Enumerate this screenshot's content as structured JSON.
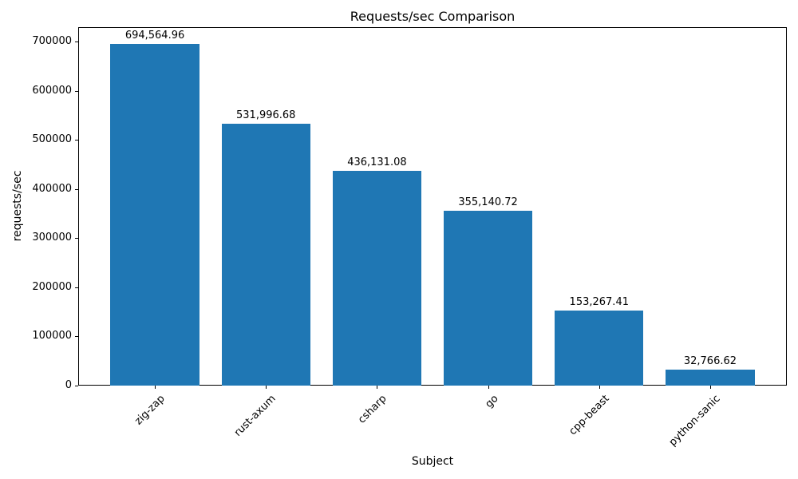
{
  "chart_data": {
    "type": "bar",
    "title": "Requests/sec Comparison",
    "xlabel": "Subject",
    "ylabel": "requests/sec",
    "categories": [
      "zig-zap",
      "rust-axum",
      "csharp",
      "go",
      "cpp-beast",
      "python-sanic"
    ],
    "values": [
      694564.96,
      531996.68,
      436131.08,
      355140.72,
      153267.41,
      32766.62
    ],
    "value_labels": [
      "694,564.96",
      "531,996.68",
      "436,131.08",
      "355,140.72",
      "153,267.41",
      "32,766.62"
    ],
    "yticks": [
      0,
      100000,
      200000,
      300000,
      400000,
      500000,
      600000,
      700000
    ],
    "ylim": [
      0,
      729293
    ],
    "xlim": [
      -0.69,
      5.69
    ],
    "bar_width": 0.8,
    "bar_color": "#1f77b4",
    "grid": false,
    "legend": null,
    "tick_label_rotation_deg": 45
  }
}
